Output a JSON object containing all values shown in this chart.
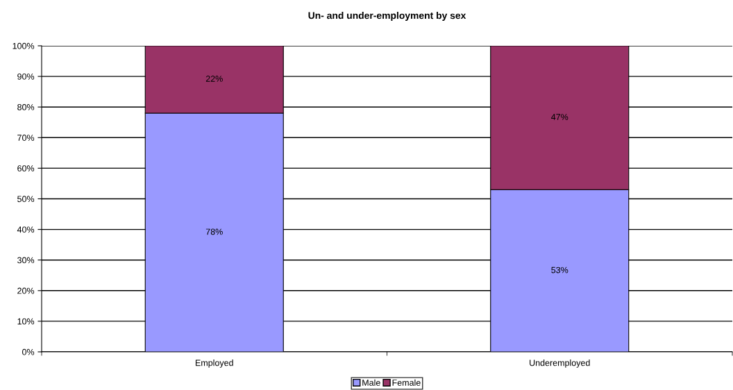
{
  "chart_data": {
    "type": "bar",
    "title": "Un- and under-employment by sex",
    "categories": [
      "Employed",
      "Underemployed"
    ],
    "stacked": true,
    "series": [
      {
        "name": "Male",
        "color": "#9999ff",
        "values": [
          78,
          53
        ],
        "value_labels": [
          "78%",
          "53%"
        ]
      },
      {
        "name": "Female",
        "color": "#993366",
        "values": [
          22,
          47
        ],
        "value_labels": [
          "22%",
          "47%"
        ]
      }
    ],
    "ylim": [
      0,
      100
    ],
    "yticks": [
      {
        "value": 0,
        "label": "0%"
      },
      {
        "value": 10,
        "label": "10%"
      },
      {
        "value": 20,
        "label": "20%"
      },
      {
        "value": 30,
        "label": "30%"
      },
      {
        "value": 40,
        "label": "40%"
      },
      {
        "value": 50,
        "label": "50%"
      },
      {
        "value": 60,
        "label": "60%"
      },
      {
        "value": 70,
        "label": "70%"
      },
      {
        "value": 80,
        "label": "80%"
      },
      {
        "value": 90,
        "label": "90%"
      },
      {
        "value": 100,
        "label": "100%"
      }
    ],
    "grid": "y",
    "legend": "bottom"
  }
}
